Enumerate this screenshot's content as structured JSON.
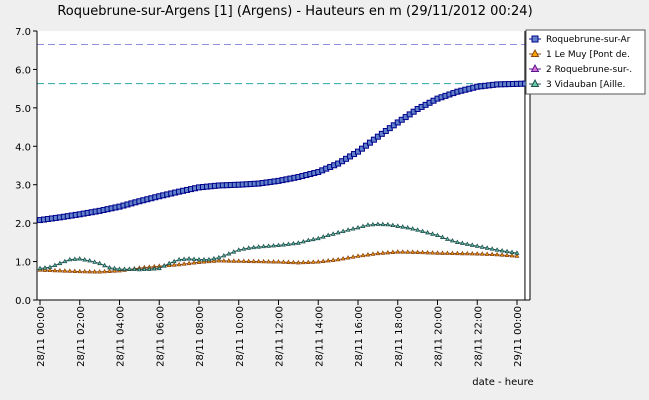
{
  "chart_data": {
    "type": "line",
    "title": "Roquebrune-sur-Argens [1] (Argens) - Hauteurs en m (29/11/2012 00:24)",
    "xlabel": "date - heure",
    "ylabel": "",
    "ylim": [
      0,
      7
    ],
    "yticks": [
      "0.0",
      "1.0",
      "2.0",
      "3.0",
      "4.0",
      "5.0",
      "6.0",
      "7.0"
    ],
    "xlim": [
      0,
      24.4
    ],
    "xticks": [
      {
        "x": 0,
        "label": "28/11 00:00"
      },
      {
        "x": 2,
        "label": "28/11 02:00"
      },
      {
        "x": 4,
        "label": "28/11 04:00"
      },
      {
        "x": 6,
        "label": "28/11 06:00"
      },
      {
        "x": 8,
        "label": "28/11 08:00"
      },
      {
        "x": 10,
        "label": "28/11 10:00"
      },
      {
        "x": 12,
        "label": "28/11 12:00"
      },
      {
        "x": 14,
        "label": "28/11 14:00"
      },
      {
        "x": 16,
        "label": "28/11 16:00"
      },
      {
        "x": 18,
        "label": "28/11 18:00"
      },
      {
        "x": 20,
        "label": "28/11 20:00"
      },
      {
        "x": 22,
        "label": "28/11 22:00"
      },
      {
        "x": 24,
        "label": "29/11 00:00"
      }
    ],
    "grid": false,
    "legend_position": "right",
    "reference_lines": [
      {
        "y": 6.65,
        "color": "#8f8fe0"
      },
      {
        "y": 5.63,
        "color": "#2aa5a5"
      }
    ],
    "current_time_x": 24.4,
    "series": [
      {
        "name": "Roquebrune-sur-Ar",
        "color": "#00008b",
        "marker_fill": "#5f82c8",
        "marker": "square",
        "x": [
          0,
          1,
          2,
          3,
          4,
          5,
          6,
          7,
          8,
          9,
          10,
          11,
          12,
          13,
          14,
          15,
          16,
          17,
          18,
          19,
          20,
          21,
          22,
          23,
          24.4
        ],
        "values": [
          2.08,
          2.15,
          2.23,
          2.32,
          2.43,
          2.57,
          2.7,
          2.82,
          2.93,
          2.98,
          3.0,
          3.03,
          3.1,
          3.2,
          3.33,
          3.55,
          3.86,
          4.25,
          4.62,
          4.97,
          5.24,
          5.42,
          5.55,
          5.61,
          5.63
        ]
      },
      {
        "name": "1 Le Muy [Pont de.",
        "color": "#8b4513",
        "marker_fill": "#ffa500",
        "marker": "triangle",
        "x": [
          0,
          1,
          2,
          3,
          4,
          5,
          6,
          7,
          8,
          9,
          10,
          11,
          12,
          13,
          14,
          15,
          16,
          17,
          18,
          19,
          20,
          21,
          22,
          23,
          24
        ],
        "values": [
          0.78,
          0.76,
          0.74,
          0.73,
          0.76,
          0.83,
          0.88,
          0.92,
          0.98,
          1.02,
          1.01,
          1.0,
          0.99,
          0.97,
          0.99,
          1.05,
          1.14,
          1.21,
          1.25,
          1.24,
          1.22,
          1.21,
          1.2,
          1.18,
          1.14
        ]
      },
      {
        "name": "2 Roquebrune-sur-.",
        "color": "#551a8b",
        "marker_fill": "#da70d6",
        "marker": "triangle",
        "x": [],
        "values": []
      },
      {
        "name": "3 Vidauban [Aille.",
        "color": "#1f4f4f",
        "marker_fill": "#66cdaa",
        "marker": "triangle",
        "x": [
          0,
          0.5,
          1,
          1.5,
          2,
          2.5,
          3,
          3.5,
          4,
          4.5,
          5,
          5.5,
          6,
          6.5,
          7,
          7.5,
          8,
          8.5,
          9,
          9.5,
          10,
          10.5,
          11,
          11.5,
          12,
          12.5,
          13,
          13.5,
          14,
          14.5,
          15,
          15.5,
          16,
          16.5,
          17,
          17.5,
          18,
          18.5,
          19,
          19.5,
          20,
          20.5,
          21,
          21.5,
          22,
          22.5,
          23,
          23.5,
          24
        ],
        "values": [
          0.82,
          0.85,
          0.95,
          1.05,
          1.07,
          1.02,
          0.95,
          0.84,
          0.8,
          0.8,
          0.79,
          0.8,
          0.82,
          0.95,
          1.05,
          1.07,
          1.05,
          1.05,
          1.1,
          1.2,
          1.3,
          1.35,
          1.38,
          1.4,
          1.42,
          1.45,
          1.48,
          1.55,
          1.6,
          1.68,
          1.75,
          1.82,
          1.88,
          1.95,
          1.97,
          1.96,
          1.92,
          1.88,
          1.82,
          1.75,
          1.68,
          1.58,
          1.5,
          1.45,
          1.4,
          1.35,
          1.3,
          1.26,
          1.22
        ]
      }
    ]
  }
}
